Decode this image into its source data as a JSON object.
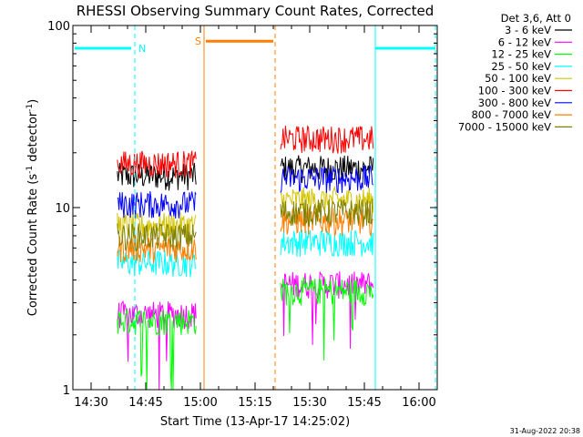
{
  "chart_data": {
    "type": "line",
    "title": "RHESSI Observing Summary Count Rates, Corrected",
    "xlabel": "Start Time (13-Apr-17 14:25:02)",
    "ylabel_main": "Corrected Count Rate (s",
    "ylabel_sup1": "-1",
    "ylabel_mid": " detector",
    "ylabel_sup2": "-1",
    "ylabel_end": ")",
    "y_scale": "log",
    "ylim": [
      1,
      100
    ],
    "xlim_minutes": [
      0,
      100
    ],
    "x_ticks": [
      {
        "label": "14:30",
        "minute": 5
      },
      {
        "label": "14:45",
        "minute": 20
      },
      {
        "label": "15:00",
        "minute": 35
      },
      {
        "label": "15:15",
        "minute": 50
      },
      {
        "label": "15:30",
        "minute": 65
      },
      {
        "label": "15:45",
        "minute": 80
      },
      {
        "label": "16:00",
        "minute": 95
      }
    ],
    "y_ticks": [
      {
        "label": "1",
        "value": 1
      },
      {
        "label": "10",
        "value": 10
      },
      {
        "label": "100",
        "value": 100
      }
    ],
    "legend_header": "Det 3,6, Att 0",
    "legend_position": "right",
    "series": [
      {
        "name": "3 - 6 keV",
        "color": "#000000",
        "segments": [
          {
            "start": 12.2,
            "end": 34.0,
            "level": 15.0
          },
          {
            "start": 57.0,
            "end": 82.5,
            "level": 16.5
          }
        ]
      },
      {
        "name": "6 - 12 keV",
        "color": "#ff00ff",
        "segments": [
          {
            "start": 12.2,
            "end": 34.0,
            "level": 2.6
          },
          {
            "start": 57.0,
            "end": 82.5,
            "level": 3.8
          }
        ]
      },
      {
        "name": "12 - 25 keV",
        "color": "#00ff00",
        "segments": [
          {
            "start": 12.2,
            "end": 34.0,
            "level": 2.4
          },
          {
            "start": 57.0,
            "end": 82.5,
            "level": 3.5
          }
        ]
      },
      {
        "name": "25 - 50 keV",
        "color": "#00ffff",
        "segments": [
          {
            "start": 12.2,
            "end": 34.0,
            "level": 5.0
          },
          {
            "start": 57.0,
            "end": 82.5,
            "level": 6.5
          }
        ]
      },
      {
        "name": "50 - 100 keV",
        "color": "#d4c400",
        "segments": [
          {
            "start": 12.2,
            "end": 34.0,
            "level": 8.0
          },
          {
            "start": 57.0,
            "end": 82.5,
            "level": 11.0
          }
        ]
      },
      {
        "name": "100 - 300 keV",
        "color": "#ff0000",
        "segments": [
          {
            "start": 12.2,
            "end": 34.0,
            "level": 17.5
          },
          {
            "start": 57.0,
            "end": 82.5,
            "level": 24.0
          }
        ]
      },
      {
        "name": "300 - 800 keV",
        "color": "#0000ff",
        "segments": [
          {
            "start": 12.2,
            "end": 34.0,
            "level": 10.5
          },
          {
            "start": 57.0,
            "end": 82.5,
            "level": 14.5
          }
        ]
      },
      {
        "name": "800 - 7000 keV",
        "color": "#ff7f00",
        "segments": [
          {
            "start": 12.2,
            "end": 34.0,
            "level": 6.0
          },
          {
            "start": 57.0,
            "end": 82.5,
            "level": 8.5
          }
        ]
      },
      {
        "name": "7000 - 15000 keV",
        "color": "#808000",
        "segments": [
          {
            "start": 12.2,
            "end": 34.0,
            "level": 7.0
          },
          {
            "start": 57.0,
            "end": 82.5,
            "level": 9.5
          }
        ]
      }
    ],
    "annotations": [
      {
        "label": "N",
        "color": "#00ffff",
        "kind": "night",
        "start": 0,
        "end": 17.0,
        "y": 75,
        "bar_start": 0.5,
        "bar_end": 16.0
      },
      {
        "label": "S",
        "color": "#ff7f00",
        "kind": "saa",
        "start": 36.0,
        "end": 55.5,
        "y": 82,
        "bar_start": 36.5,
        "bar_end": 55.0
      },
      {
        "label": "",
        "color": "#00ffff",
        "kind": "night",
        "start": 83.0,
        "end": 99.5,
        "y": 75,
        "bar_start": 83.0,
        "bar_end": 99.5
      }
    ]
  },
  "footer_date": "31-Aug-2022 20:38"
}
